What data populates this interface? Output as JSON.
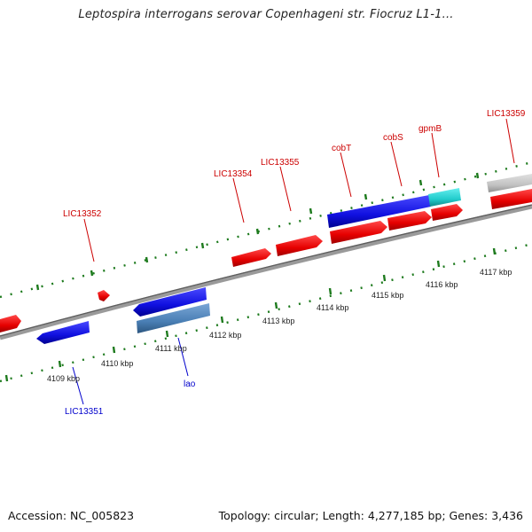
{
  "title": "Leptospira interrogans serovar Copenhageni str. Fiocruz L1-1...",
  "footer": {
    "accession": "Accession: NC_005823",
    "summary": "Topology: circular; Length: 4,277,185 bp; Genes: 3,436"
  },
  "colors": {
    "background": "#ffffff",
    "forward_gene": "#ee0000",
    "reverse_gene": "#1010e0",
    "steelblue_gene": "#4a7fb5",
    "cyan_gene": "#22cccc",
    "gray_gene": "#bdbdbd",
    "backbone": "#8a8a8a",
    "tick": "#1d7a1d",
    "forward_label": "#cc0000",
    "reverse_label": "#0000cc"
  },
  "scale_labels": [
    "4109 kbp",
    "4110 kbp",
    "4111 kbp",
    "4112 kbp",
    "4113 kbp",
    "4114 kbp",
    "4115 kbp",
    "4116 kbp",
    "4117 kbp"
  ],
  "gene_labels": {
    "forward": [
      "LIC13352",
      "LIC13354",
      "LIC13355",
      "cobT",
      "cobS",
      "gpmB",
      "LIC13359"
    ],
    "reverse": [
      "LIC13351",
      "lao"
    ]
  }
}
